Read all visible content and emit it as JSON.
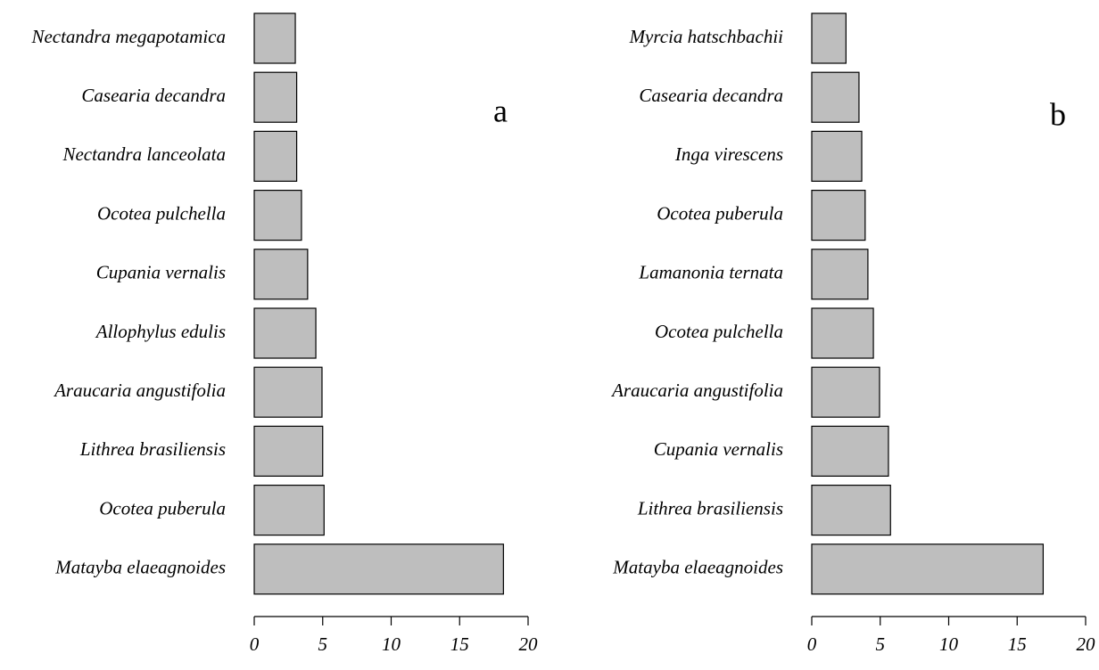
{
  "chart_data": [
    {
      "type": "bar",
      "orientation": "horizontal",
      "panel_label": "a",
      "categories": [
        "Nectandra megapotamica",
        "Casearia decandra",
        "Nectandra lanceolata",
        "Ocotea pulchella",
        "Cupania vernalis",
        "Allophylus edulis",
        "Araucaria angustifolia",
        "Lithrea brasiliensis",
        "Ocotea puberula",
        "Matayba elaeagnoides"
      ],
      "values": [
        3.0,
        3.1,
        3.1,
        3.45,
        3.9,
        4.5,
        4.95,
        5.0,
        5.1,
        18.2
      ],
      "color": "#bebebe",
      "xlim": [
        0,
        20
      ],
      "xticks": [
        0,
        5,
        10,
        15,
        20
      ]
    },
    {
      "type": "bar",
      "orientation": "horizontal",
      "panel_label": "b",
      "categories": [
        "Myrcia hatschbachii",
        "Casearia decandra",
        "Inga virescens",
        "Ocotea puberula",
        "Lamanonia ternata",
        "Ocotea pulchella",
        "Araucaria angustifolia",
        "Cupania vernalis",
        "Lithrea brasiliensis",
        "Matayba elaeagnoides"
      ],
      "values": [
        2.5,
        3.45,
        3.65,
        3.9,
        4.1,
        4.5,
        4.95,
        5.6,
        5.75,
        16.9
      ],
      "color": "#bebebe",
      "xlim": [
        0,
        20
      ],
      "xticks": [
        0,
        5,
        10,
        15,
        20
      ]
    }
  ]
}
